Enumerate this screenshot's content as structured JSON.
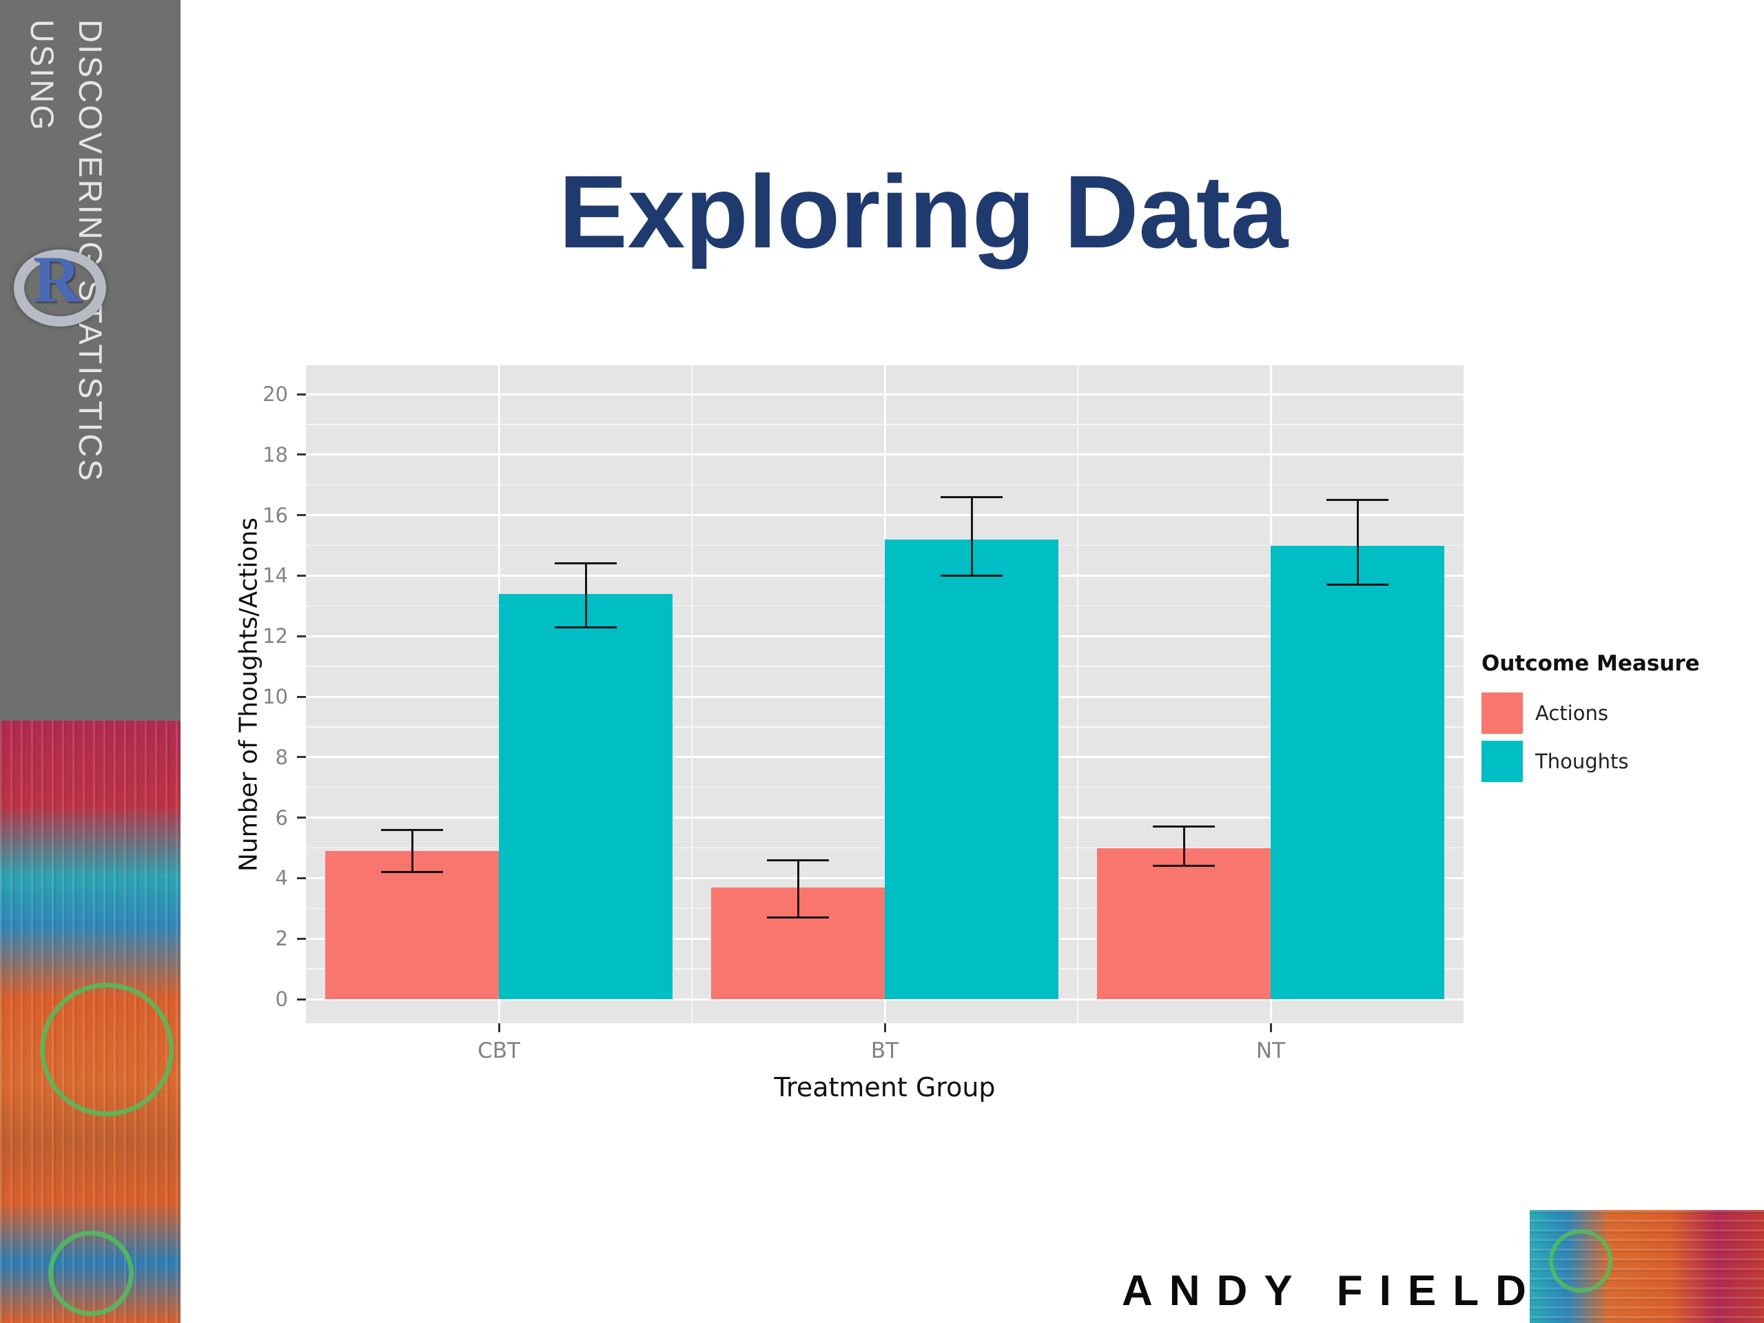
{
  "title": "Exploring Data",
  "sidebar": {
    "line1": "DISCOVERING STATISTICS",
    "line2": "USING",
    "r_logo_letter": "R"
  },
  "footer": {
    "author": "ANDY FIELD"
  },
  "colors": {
    "title": "#1e3a6e",
    "sidebar_gray": "#6f6f6f",
    "panel_background": "#e5e5e5",
    "grid": "#ffffff",
    "axis_tick_text": "#828282",
    "actions": "#F8766D",
    "thoughts": "#00BFC4"
  },
  "chart_data": {
    "type": "bar",
    "title": "",
    "categories": [
      "CBT",
      "BT",
      "NT"
    ],
    "series": [
      {
        "name": "Actions",
        "color": "#F8766D",
        "values": [
          4.9,
          3.7,
          5.0
        ],
        "error_low": [
          4.2,
          2.7,
          4.4
        ],
        "error_high": [
          5.6,
          4.6,
          5.7
        ]
      },
      {
        "name": "Thoughts",
        "color": "#00BFC4",
        "values": [
          13.4,
          15.2,
          15.0
        ],
        "error_low": [
          12.3,
          14.0,
          13.7
        ],
        "error_high": [
          14.4,
          16.6,
          16.5
        ]
      }
    ],
    "xlabel": "Treatment Group",
    "ylabel": "Number of Thoughts/Actions",
    "ylim": [
      0,
      20
    ],
    "ytick_step": 2,
    "legend_title": "Outcome Measure",
    "legend_position": "right",
    "grid": true,
    "error_bars": true
  }
}
